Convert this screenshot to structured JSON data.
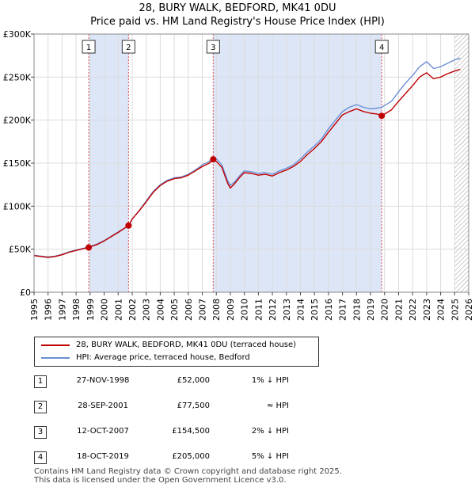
{
  "header": {
    "title": "28, BURY WALK, BEDFORD, MK41 0DU",
    "subtitle": "Price paid vs. HM Land Registry's House Price Index (HPI)"
  },
  "legend": {
    "property_label": "28, BURY WALK, BEDFORD, MK41 0DU (terraced house)",
    "hpi_label": "HPI: Average price, terraced house, Bedford"
  },
  "colors": {
    "property": "#c00000",
    "hpi": "#6b8fd4",
    "shade": "#dde6f7",
    "grid": "#dcdcdc",
    "vline": "#e05050"
  },
  "sales": [
    {
      "num": "1",
      "date": "27-NOV-1998",
      "price": "£52,000",
      "hpi": "1% ↓ HPI"
    },
    {
      "num": "2",
      "date": "28-SEP-2001",
      "price": "£77,500",
      "hpi": "≈ HPI"
    },
    {
      "num": "3",
      "date": "12-OCT-2007",
      "price": "£154,500",
      "hpi": "2% ↓ HPI"
    },
    {
      "num": "4",
      "date": "18-OCT-2019",
      "price": "£205,000",
      "hpi": "5% ↓ HPI"
    }
  ],
  "footer": {
    "line1": "Contains HM Land Registry data © Crown copyright and database right 2025.",
    "line2": "This data is licensed under the Open Government Licence v3.0."
  },
  "chart_data": {
    "type": "line",
    "title": "28, BURY WALK, BEDFORD, MK41 0DU",
    "subtitle": "Price paid vs. HM Land Registry's House Price Index (HPI)",
    "xlabel": "",
    "ylabel": "",
    "xlim": [
      1995,
      2026
    ],
    "ylim": [
      0,
      300000
    ],
    "x_ticks": [
      "1995",
      "1996",
      "1997",
      "1998",
      "1999",
      "2000",
      "2001",
      "2002",
      "2003",
      "2004",
      "2005",
      "2006",
      "2007",
      "2008",
      "2009",
      "2010",
      "2011",
      "2012",
      "2013",
      "2014",
      "2015",
      "2016",
      "2017",
      "2018",
      "2019",
      "2020",
      "2021",
      "2022",
      "2023",
      "2024",
      "2025",
      "2026"
    ],
    "y_ticks": [
      {
        "value": 0,
        "label": "£0"
      },
      {
        "value": 50000,
        "label": "£50K"
      },
      {
        "value": 100000,
        "label": "£100K"
      },
      {
        "value": 150000,
        "label": "£150K"
      },
      {
        "value": 200000,
        "label": "£200K"
      },
      {
        "value": 250000,
        "label": "£250K"
      },
      {
        "value": 300000,
        "label": "£300K"
      }
    ],
    "shaded_ranges": [
      [
        1998.9,
        2001.74
      ],
      [
        2007.78,
        2019.8
      ]
    ],
    "hatched_from": 2025.0,
    "sale_markers": [
      {
        "label": "1",
        "x": 1998.9,
        "value": 52000
      },
      {
        "label": "2",
        "x": 2001.74,
        "value": 77500
      },
      {
        "label": "3",
        "x": 2007.78,
        "value": 154500
      },
      {
        "label": "4",
        "x": 2019.8,
        "value": 205000
      }
    ],
    "series": [
      {
        "name": "HPI: Average price, terraced house, Bedford",
        "color": "#6b8fd4",
        "x": [
          1995,
          1995.5,
          1996,
          1996.5,
          1997,
          1997.5,
          1998,
          1998.5,
          1998.9,
          1999.5,
          2000,
          2000.5,
          2001,
          2001.74,
          2002,
          2002.5,
          2003,
          2003.5,
          2004,
          2004.5,
          2005,
          2005.5,
          2006,
          2006.5,
          2007,
          2007.5,
          2007.78,
          2008,
          2008.4,
          2008.8,
          2009,
          2009.3,
          2009.7,
          2010,
          2010.5,
          2011,
          2011.5,
          2012,
          2012.5,
          2013,
          2013.5,
          2014,
          2014.5,
          2015,
          2015.5,
          2016,
          2016.5,
          2017,
          2017.5,
          2018,
          2018.5,
          2019,
          2019.5,
          2019.8,
          2020,
          2020.5,
          2021,
          2021.5,
          2022,
          2022.5,
          2023,
          2023.5,
          2024,
          2024.5,
          2025,
          2025.4
        ],
        "values": [
          43000,
          42000,
          41000,
          42000,
          44000,
          47000,
          49000,
          51000,
          52500,
          56000,
          60000,
          65000,
          70000,
          77500,
          85000,
          95000,
          106000,
          117000,
          125000,
          130000,
          133000,
          134000,
          137000,
          142000,
          148000,
          152000,
          157000,
          155000,
          148000,
          130000,
          124000,
          128000,
          136000,
          141000,
          140000,
          138000,
          139000,
          137000,
          141000,
          144000,
          148000,
          155000,
          163000,
          170000,
          178000,
          190000,
          200000,
          210000,
          215000,
          218000,
          215000,
          213000,
          214000,
          215000,
          217000,
          222000,
          233000,
          243000,
          252000,
          262000,
          268000,
          260000,
          262000,
          266000,
          270000,
          272000
        ]
      },
      {
        "name": "28, BURY WALK, BEDFORD, MK41 0DU (terraced house)",
        "color": "#c00000",
        "x": [
          1995,
          1995.5,
          1996,
          1996.5,
          1997,
          1997.5,
          1998,
          1998.5,
          1998.9,
          1999.5,
          2000,
          2000.5,
          2001,
          2001.74,
          2002,
          2002.5,
          2003,
          2003.5,
          2004,
          2004.5,
          2005,
          2005.5,
          2006,
          2006.5,
          2007,
          2007.5,
          2007.78,
          2008,
          2008.4,
          2008.8,
          2009,
          2009.3,
          2009.7,
          2010,
          2010.5,
          2011,
          2011.5,
          2012,
          2012.5,
          2013,
          2013.5,
          2014,
          2014.5,
          2015,
          2015.5,
          2016,
          2016.5,
          2017,
          2017.5,
          2018,
          2018.5,
          2019,
          2019.5,
          2019.8,
          2020,
          2020.5,
          2021,
          2021.5,
          2022,
          2022.5,
          2023,
          2023.5,
          2024,
          2024.5,
          2025,
          2025.4
        ],
        "values": [
          42500,
          41500,
          40500,
          41500,
          43500,
          46500,
          48500,
          50500,
          52000,
          55500,
          59500,
          64500,
          69500,
          77500,
          85000,
          94500,
          105000,
          116000,
          124000,
          129000,
          132000,
          133000,
          136000,
          141000,
          146000,
          150000,
          154500,
          152000,
          145000,
          127000,
          121000,
          126000,
          134000,
          139000,
          138000,
          136000,
          137000,
          135000,
          139000,
          142000,
          146000,
          152000,
          160000,
          167000,
          175000,
          186000,
          196000,
          206000,
          210000,
          213000,
          210000,
          208000,
          207000,
          205000,
          207000,
          212000,
          222000,
          231000,
          240000,
          250000,
          255000,
          248000,
          250000,
          254000,
          257000,
          259000
        ]
      }
    ]
  }
}
